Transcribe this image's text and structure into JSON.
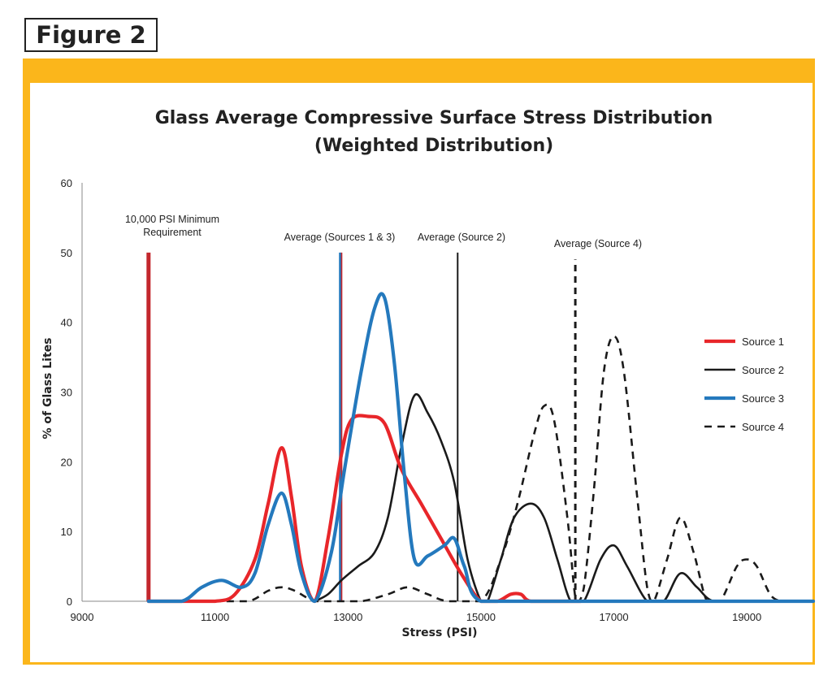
{
  "figure_label": "Figure 2",
  "chart_data": {
    "type": "line",
    "title": "Glass Average Compressive Surface Stress Distribution",
    "subtitle": "(Weighted Distribution)",
    "xlabel": "Stress (PSI)",
    "ylabel": "% of Glass Lites",
    "xlim": [
      9000,
      20000
    ],
    "ylim": [
      0,
      60
    ],
    "xticks": [
      9000,
      11000,
      13000,
      15000,
      17000,
      19000
    ],
    "yticks": [
      0,
      10,
      20,
      30,
      40,
      50,
      60
    ],
    "legend_position": "right",
    "series": [
      {
        "name": "Source 1",
        "color": "#e8262a",
        "dash": "solid",
        "points": [
          [
            10000,
            0
          ],
          [
            10500,
            0
          ],
          [
            11000,
            0
          ],
          [
            11300,
            1
          ],
          [
            11600,
            6
          ],
          [
            11800,
            14
          ],
          [
            12000,
            22
          ],
          [
            12150,
            15
          ],
          [
            12300,
            5
          ],
          [
            12500,
            0
          ],
          [
            12700,
            9
          ],
          [
            12900,
            21
          ],
          [
            13050,
            26
          ],
          [
            13300,
            26.5
          ],
          [
            13550,
            25.5
          ],
          [
            13800,
            19
          ],
          [
            14100,
            14
          ],
          [
            14400,
            9
          ],
          [
            14700,
            4
          ],
          [
            15000,
            0
          ],
          [
            15250,
            0
          ],
          [
            15450,
            1
          ],
          [
            15600,
            1
          ],
          [
            15750,
            0
          ],
          [
            16200,
            0
          ],
          [
            16500,
            0
          ]
        ]
      },
      {
        "name": "Source 2",
        "color": "#1a1a1a",
        "dash": "solid",
        "points": [
          [
            12500,
            0
          ],
          [
            12700,
            1
          ],
          [
            12900,
            3
          ],
          [
            13150,
            5
          ],
          [
            13400,
            7
          ],
          [
            13600,
            12
          ],
          [
            13800,
            22
          ],
          [
            14000,
            29.5
          ],
          [
            14200,
            27
          ],
          [
            14400,
            23
          ],
          [
            14600,
            17
          ],
          [
            14800,
            6
          ],
          [
            15000,
            0
          ],
          [
            15100,
            0
          ],
          [
            15300,
            6
          ],
          [
            15500,
            12
          ],
          [
            15750,
            14
          ],
          [
            15950,
            12
          ],
          [
            16150,
            6
          ],
          [
            16350,
            0
          ],
          [
            16550,
            0
          ],
          [
            16800,
            6
          ],
          [
            17000,
            8
          ],
          [
            17200,
            5
          ],
          [
            17500,
            0
          ],
          [
            17750,
            0
          ],
          [
            18000,
            4
          ],
          [
            18250,
            2
          ],
          [
            18500,
            0
          ],
          [
            19000,
            0
          ]
        ]
      },
      {
        "name": "Source 3",
        "color": "#2479bd",
        "dash": "solid",
        "points": [
          [
            10000,
            0
          ],
          [
            10500,
            0
          ],
          [
            10800,
            2
          ],
          [
            11100,
            3
          ],
          [
            11400,
            2
          ],
          [
            11600,
            4
          ],
          [
            11800,
            11
          ],
          [
            12000,
            15.5
          ],
          [
            12150,
            11
          ],
          [
            12300,
            4
          ],
          [
            12500,
            0
          ],
          [
            12750,
            7
          ],
          [
            12950,
            19
          ],
          [
            13200,
            33
          ],
          [
            13400,
            42
          ],
          [
            13550,
            43.5
          ],
          [
            13700,
            34
          ],
          [
            13850,
            18
          ],
          [
            14000,
            6
          ],
          [
            14200,
            6.5
          ],
          [
            14450,
            8
          ],
          [
            14600,
            9
          ],
          [
            14750,
            5
          ],
          [
            15000,
            0
          ],
          [
            16000,
            0
          ],
          [
            17000,
            0
          ],
          [
            18000,
            0
          ],
          [
            19000,
            0
          ],
          [
            20000,
            0
          ]
        ]
      },
      {
        "name": "Source 4",
        "color": "#1a1a1a",
        "dash": "dashed",
        "points": [
          [
            10000,
            0
          ],
          [
            11000,
            0
          ],
          [
            11500,
            0
          ],
          [
            11800,
            1.5
          ],
          [
            12000,
            2
          ],
          [
            12200,
            1.5
          ],
          [
            12500,
            0
          ],
          [
            12800,
            0
          ],
          [
            13200,
            0
          ],
          [
            13600,
            1
          ],
          [
            13900,
            2
          ],
          [
            14200,
            1
          ],
          [
            14500,
            0
          ],
          [
            15000,
            0
          ],
          [
            15300,
            6
          ],
          [
            15550,
            14
          ],
          [
            15800,
            24
          ],
          [
            15950,
            28
          ],
          [
            16100,
            26
          ],
          [
            16300,
            12
          ],
          [
            16400,
            2
          ],
          [
            16450,
            0
          ],
          [
            16550,
            2
          ],
          [
            16700,
            16
          ],
          [
            16850,
            33
          ],
          [
            17000,
            38
          ],
          [
            17150,
            33
          ],
          [
            17350,
            15
          ],
          [
            17500,
            2
          ],
          [
            17600,
            0
          ],
          [
            17800,
            6
          ],
          [
            18000,
            12
          ],
          [
            18200,
            7
          ],
          [
            18400,
            0
          ],
          [
            18600,
            0
          ],
          [
            18850,
            5
          ],
          [
            19000,
            6
          ],
          [
            19150,
            5
          ],
          [
            19350,
            1
          ],
          [
            19500,
            0
          ]
        ]
      }
    ],
    "reference_lines": [
      {
        "x": 10000,
        "top": 50,
        "color": "#c3272d",
        "width": 5,
        "dash": "solid",
        "label_lines": [
          "10,000 PSI Minimum",
          "Requirement"
        ]
      },
      {
        "x": 12900,
        "top": 50,
        "color": "#c3272d",
        "width": 2.5,
        "dash": "solid",
        "label_lines": [
          "Average (Sources 1 & 3)"
        ]
      },
      {
        "x": 12880,
        "top": 50,
        "color": "#2479bd",
        "width": 2.5,
        "dash": "solid",
        "label_lines": []
      },
      {
        "x": 14650,
        "top": 50,
        "color": "#1a1a1a",
        "width": 2,
        "dash": "solid",
        "label_lines": [
          "Average (Source 2)"
        ]
      },
      {
        "x": 16420,
        "top": 49,
        "color": "#1a1a1a",
        "width": 3,
        "dash": "dashed",
        "label_lines": [
          "Average (Source 4)"
        ]
      }
    ]
  }
}
